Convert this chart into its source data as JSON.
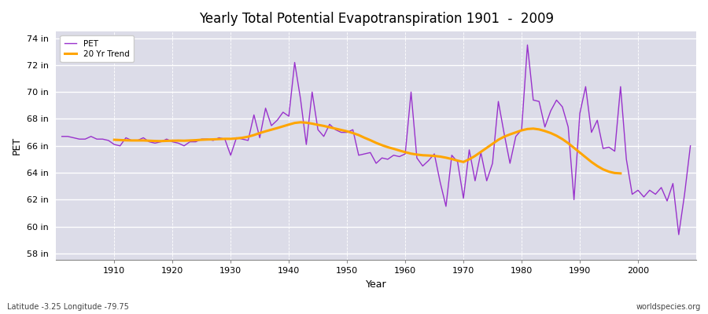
{
  "title": "Yearly Total Potential Evapotranspiration 1901  -  2009",
  "ylabel": "PET",
  "xlabel": "Year",
  "footnote_left": "Latitude -3.25 Longitude -79.75",
  "footnote_right": "worldspecies.org",
  "pet_color": "#9932CC",
  "trend_color": "#FFA500",
  "bg_color": "#dcdce8",
  "grid_color": "#ffffff",
  "ylim": [
    57.5,
    74.5
  ],
  "yticks": [
    58,
    60,
    62,
    64,
    66,
    68,
    70,
    72,
    74
  ],
  "ytick_labels": [
    "58 in",
    "60 in",
    "62 in",
    "64 in",
    "66 in",
    "68 in",
    "70 in",
    "72 in",
    "74 in"
  ],
  "xlim": [
    1900,
    2010
  ],
  "xticks": [
    1910,
    1920,
    1930,
    1940,
    1950,
    1960,
    1970,
    1980,
    1990,
    2000
  ],
  "years": [
    1901,
    1902,
    1903,
    1904,
    1905,
    1906,
    1907,
    1908,
    1909,
    1910,
    1911,
    1912,
    1913,
    1914,
    1915,
    1916,
    1917,
    1918,
    1919,
    1920,
    1921,
    1922,
    1923,
    1924,
    1925,
    1926,
    1927,
    1928,
    1929,
    1930,
    1931,
    1932,
    1933,
    1934,
    1935,
    1936,
    1937,
    1938,
    1939,
    1940,
    1941,
    1942,
    1943,
    1944,
    1945,
    1946,
    1947,
    1948,
    1949,
    1950,
    1951,
    1952,
    1953,
    1954,
    1955,
    1956,
    1957,
    1958,
    1959,
    1960,
    1961,
    1962,
    1963,
    1964,
    1965,
    1966,
    1967,
    1968,
    1969,
    1970,
    1971,
    1972,
    1973,
    1974,
    1975,
    1976,
    1977,
    1978,
    1979,
    1980,
    1981,
    1982,
    1983,
    1984,
    1985,
    1986,
    1987,
    1988,
    1989,
    1990,
    1991,
    1992,
    1993,
    1994,
    1995,
    1996,
    1997,
    1998,
    1999,
    2000,
    2001,
    2002,
    2003,
    2004,
    2005,
    2006,
    2007,
    2008,
    2009
  ],
  "pet_values": [
    66.7,
    66.7,
    66.6,
    66.5,
    66.5,
    66.7,
    66.5,
    66.5,
    66.4,
    66.1,
    66.0,
    66.6,
    66.4,
    66.4,
    66.6,
    66.3,
    66.2,
    66.3,
    66.5,
    66.3,
    66.2,
    66.0,
    66.3,
    66.3,
    66.5,
    66.5,
    66.4,
    66.6,
    66.5,
    65.3,
    66.6,
    66.5,
    66.4,
    68.3,
    66.6,
    68.8,
    67.5,
    67.9,
    68.5,
    68.2,
    72.2,
    69.5,
    66.1,
    70.0,
    67.2,
    66.7,
    67.6,
    67.2,
    67.0,
    67.0,
    67.2,
    65.3,
    65.4,
    65.5,
    64.7,
    65.1,
    65.0,
    65.3,
    65.2,
    65.4,
    70.0,
    65.1,
    64.5,
    64.9,
    65.4,
    63.3,
    61.5,
    65.3,
    64.8,
    62.1,
    65.7,
    63.4,
    65.5,
    63.4,
    64.7,
    69.3,
    66.9,
    64.7,
    66.7,
    67.2,
    73.5,
    69.4,
    69.3,
    67.4,
    68.6,
    69.4,
    68.9,
    67.4,
    62.0,
    68.4,
    70.4,
    67.0,
    67.9,
    65.8,
    65.9,
    65.6,
    70.4,
    65.0,
    62.4,
    62.7,
    62.2,
    62.7,
    62.4,
    62.9,
    61.9,
    63.2,
    59.4,
    62.4,
    66.0
  ],
  "trend_values": [
    null,
    null,
    null,
    null,
    null,
    null,
    null,
    null,
    null,
    66.45,
    66.43,
    66.41,
    66.4,
    66.4,
    66.4,
    66.38,
    66.36,
    66.35,
    66.37,
    66.38,
    66.39,
    66.38,
    66.4,
    66.42,
    66.45,
    66.47,
    66.48,
    66.5,
    66.52,
    66.52,
    66.55,
    66.6,
    66.68,
    66.8,
    66.95,
    67.08,
    67.2,
    67.32,
    67.45,
    67.58,
    67.7,
    67.75,
    67.72,
    67.65,
    67.56,
    67.48,
    67.38,
    67.28,
    67.18,
    67.08,
    66.95,
    66.8,
    66.6,
    66.42,
    66.22,
    66.05,
    65.9,
    65.78,
    65.65,
    65.53,
    65.42,
    65.35,
    65.3,
    65.28,
    65.25,
    65.2,
    65.12,
    65.02,
    64.9,
    64.8,
    65.0,
    65.25,
    65.55,
    65.85,
    66.15,
    66.45,
    66.68,
    66.85,
    67.0,
    67.15,
    67.25,
    67.28,
    67.22,
    67.1,
    66.95,
    66.75,
    66.5,
    66.2,
    65.85,
    65.5,
    65.15,
    64.8,
    64.5,
    64.25,
    64.08,
    63.98,
    63.95,
    null,
    null,
    null,
    null,
    null,
    null,
    null,
    null,
    null,
    null,
    null
  ]
}
